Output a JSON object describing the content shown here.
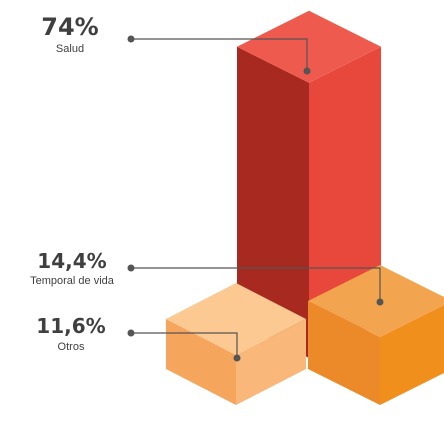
{
  "chart_data": {
    "type": "bar",
    "style": "isometric-3d",
    "unit": "%",
    "categories": [
      "Salud",
      "Temporal de vida",
      "Otros"
    ],
    "values": [
      74,
      14.4,
      11.6
    ],
    "value_labels": [
      "74%",
      "14,4%",
      "11,6%"
    ],
    "colors": {
      "Salud": {
        "top": "#ef5a4e",
        "left": "#a8291f",
        "right": "#e8473c"
      },
      "Temporal de vida": {
        "top": "#f2a54e",
        "left": "#ec8a2a",
        "right": "#f08f1c"
      },
      "Otros": {
        "top": "#fbc991",
        "left": "#f6a55c",
        "right": "#f9b779"
      }
    },
    "leader_color": "#555555"
  }
}
